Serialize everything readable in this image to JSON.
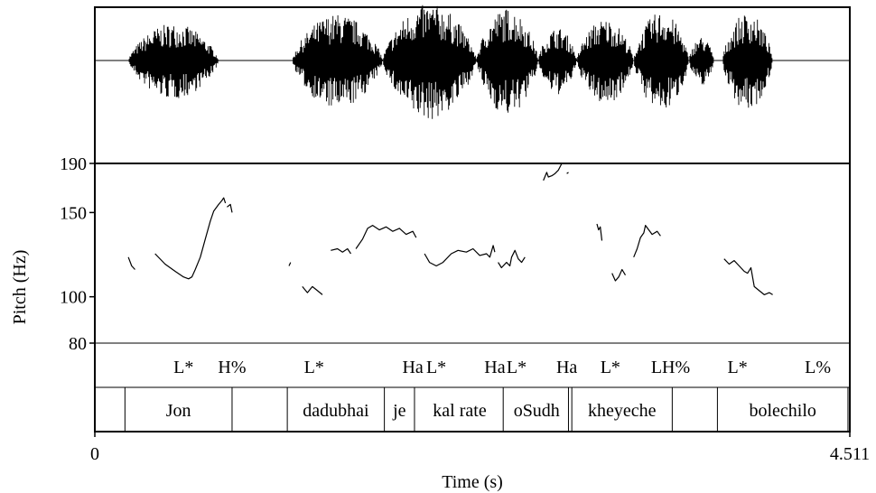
{
  "chart_data": {
    "type": "line",
    "pitch_axis": {
      "label": "Pitch (Hz)",
      "ticks": [
        190,
        150,
        100,
        80
      ],
      "range": [
        80,
        190
      ]
    },
    "time_axis": {
      "label": "Time (s)",
      "start_label": "0",
      "end_label": "4.511",
      "range": [
        0,
        4.511
      ]
    },
    "waveform_segments": [
      {
        "start": 0.2,
        "end": 0.74,
        "peak": 0.62
      },
      {
        "start": 1.18,
        "end": 1.72,
        "peak": 0.78
      },
      {
        "start": 1.72,
        "end": 2.28,
        "peak": 0.95
      },
      {
        "start": 2.28,
        "end": 2.65,
        "peak": 0.88
      },
      {
        "start": 2.65,
        "end": 2.88,
        "peak": 0.55
      },
      {
        "start": 2.88,
        "end": 3.22,
        "peak": 0.7
      },
      {
        "start": 3.22,
        "end": 3.55,
        "peak": 0.82
      },
      {
        "start": 3.55,
        "end": 3.7,
        "peak": 0.4
      },
      {
        "start": 3.75,
        "end": 4.05,
        "peak": 0.8
      }
    ],
    "pitch_contours": [
      [
        [
          0.2,
          121
        ],
        [
          0.22,
          116
        ],
        [
          0.24,
          114
        ]
      ],
      [
        [
          0.36,
          123
        ],
        [
          0.42,
          117
        ],
        [
          0.48,
          113
        ],
        [
          0.53,
          110
        ],
        [
          0.56,
          109
        ],
        [
          0.58,
          110
        ],
        [
          0.6,
          114
        ],
        [
          0.63,
          121
        ],
        [
          0.66,
          132
        ],
        [
          0.69,
          144
        ],
        [
          0.71,
          151
        ],
        [
          0.74,
          156
        ],
        [
          0.76,
          159
        ],
        [
          0.77,
          161
        ],
        [
          0.78,
          157
        ]
      ],
      [
        [
          0.79,
          154
        ],
        [
          0.81,
          156
        ],
        [
          0.82,
          150
        ]
      ],
      [
        [
          1.16,
          116
        ],
        [
          1.17,
          118
        ]
      ],
      [
        [
          1.24,
          105
        ],
        [
          1.27,
          102
        ],
        [
          1.3,
          105
        ],
        [
          1.33,
          103
        ],
        [
          1.36,
          101
        ]
      ],
      [
        [
          1.41,
          125
        ],
        [
          1.45,
          126
        ],
        [
          1.48,
          124
        ],
        [
          1.51,
          126
        ],
        [
          1.53,
          123
        ]
      ],
      [
        [
          1.56,
          126
        ],
        [
          1.6,
          132
        ],
        [
          1.63,
          139
        ],
        [
          1.66,
          141
        ],
        [
          1.7,
          138
        ],
        [
          1.74,
          140
        ],
        [
          1.78,
          137
        ],
        [
          1.82,
          139
        ],
        [
          1.86,
          135
        ],
        [
          1.9,
          137
        ],
        [
          1.92,
          133
        ]
      ],
      [
        [
          1.97,
          123
        ],
        [
          2.0,
          118
        ],
        [
          2.04,
          116
        ],
        [
          2.08,
          118
        ],
        [
          2.13,
          123
        ],
        [
          2.17,
          125
        ],
        [
          2.22,
          124
        ],
        [
          2.26,
          126
        ],
        [
          2.3,
          122
        ],
        [
          2.34,
          123
        ],
        [
          2.36,
          121
        ],
        [
          2.38,
          128
        ],
        [
          2.39,
          124
        ]
      ],
      [
        [
          2.41,
          118
        ],
        [
          2.43,
          115
        ],
        [
          2.46,
          118
        ],
        [
          2.48,
          116
        ],
        [
          2.49,
          121
        ],
        [
          2.51,
          125
        ],
        [
          2.53,
          120
        ],
        [
          2.55,
          118
        ],
        [
          2.57,
          121
        ]
      ],
      [
        [
          2.68,
          175
        ],
        [
          2.7,
          182
        ],
        [
          2.71,
          178
        ],
        [
          2.73,
          179
        ],
        [
          2.75,
          181
        ],
        [
          2.77,
          184
        ],
        [
          2.79,
          190
        ]
      ],
      [
        [
          2.82,
          181
        ],
        [
          2.83,
          182
        ]
      ],
      [
        [
          3.0,
          142
        ],
        [
          3.01,
          138
        ],
        [
          3.02,
          140
        ],
        [
          3.03,
          131
        ]
      ],
      [
        [
          3.09,
          112
        ],
        [
          3.11,
          108
        ],
        [
          3.13,
          110
        ],
        [
          3.15,
          114
        ],
        [
          3.17,
          111
        ]
      ],
      [
        [
          3.22,
          121
        ],
        [
          3.24,
          126
        ],
        [
          3.26,
          133
        ],
        [
          3.28,
          136
        ],
        [
          3.29,
          141
        ],
        [
          3.31,
          138
        ],
        [
          3.33,
          135
        ],
        [
          3.36,
          137
        ],
        [
          3.38,
          134
        ]
      ],
      [
        [
          3.76,
          120
        ],
        [
          3.79,
          117
        ],
        [
          3.82,
          119
        ],
        [
          3.85,
          116
        ],
        [
          3.88,
          113
        ],
        [
          3.9,
          112
        ],
        [
          3.92,
          115
        ],
        [
          3.94,
          105
        ],
        [
          3.97,
          103
        ],
        [
          4.0,
          101
        ],
        [
          4.03,
          102
        ],
        [
          4.05,
          101
        ]
      ]
    ],
    "tones": [
      {
        "text": "L*",
        "t": 0.53
      },
      {
        "text": "H%",
        "t": 0.82
      },
      {
        "text": "L*",
        "t": 1.31
      },
      {
        "text": "Ha",
        "t": 1.9
      },
      {
        "text": "L*",
        "t": 2.04
      },
      {
        "text": "Ha",
        "t": 2.39
      },
      {
        "text": "L*",
        "t": 2.52
      },
      {
        "text": "Ha",
        "t": 2.82
      },
      {
        "text": "L*",
        "t": 3.08
      },
      {
        "text": "LH%",
        "t": 3.44
      },
      {
        "text": "L*",
        "t": 3.84
      },
      {
        "text": "L%",
        "t": 4.32
      }
    ],
    "word_boundaries": [
      0.18,
      0.82,
      1.15,
      1.73,
      1.91,
      2.44,
      2.83,
      2.85,
      3.45,
      3.72,
      4.5
    ],
    "words": [
      {
        "text": "Jon",
        "t": 0.5
      },
      {
        "text": "dadubhai",
        "t": 1.44
      },
      {
        "text": "je",
        "t": 1.82
      },
      {
        "text": "kal rate",
        "t": 2.18
      },
      {
        "text": "oSudh",
        "t": 2.64
      },
      {
        "text": "kheyeche",
        "t": 3.15
      },
      {
        "text": "bolechilo",
        "t": 4.11
      }
    ]
  }
}
